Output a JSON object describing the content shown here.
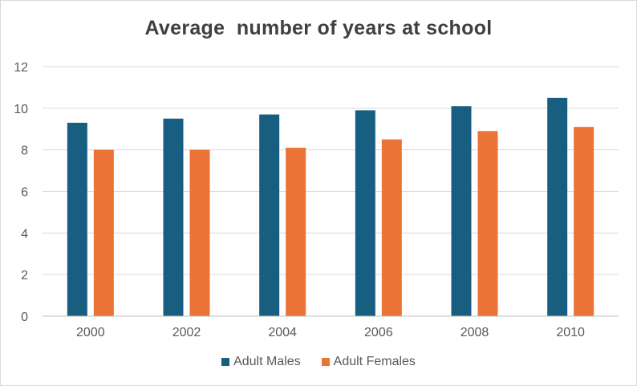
{
  "chart_data": {
    "type": "bar",
    "title": "Average  number of years at school",
    "xlabel": "",
    "ylabel": "",
    "categories": [
      "2000",
      "2002",
      "2004",
      "2006",
      "2008",
      "2010"
    ],
    "series": [
      {
        "name": "Adult Males",
        "color": "#185e81",
        "values": [
          9.3,
          9.5,
          9.7,
          9.9,
          10.1,
          10.5
        ]
      },
      {
        "name": "Adult Females",
        "color": "#eb7335",
        "values": [
          8.0,
          8.0,
          8.1,
          8.5,
          8.9,
          9.1
        ]
      }
    ],
    "ylim": [
      0,
      12
    ],
    "yticks": [
      "0",
      "2",
      "4",
      "6",
      "8",
      "10",
      "12"
    ],
    "grid": true,
    "legend_position": "bottom"
  }
}
